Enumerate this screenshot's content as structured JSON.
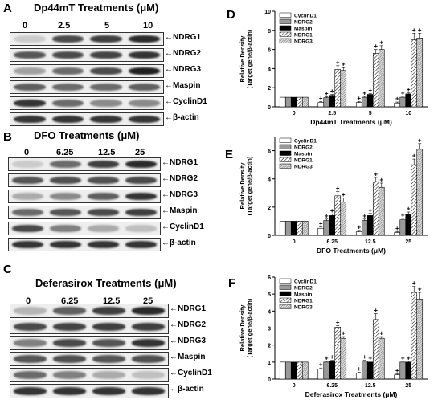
{
  "panels": {
    "A": {
      "letter": "A",
      "title": "Dp44mT Treatments (μM)",
      "concentrations": [
        "0",
        "2.5",
        "5",
        "10"
      ],
      "proteins": [
        "←NDRG1",
        "←NDRG2",
        "←NDRG3",
        "←Maspin",
        "←CyclinD1",
        "←β-actin"
      ],
      "band_intensity": [
        [
          0.15,
          0.75,
          0.8,
          0.9
        ],
        [
          0.7,
          0.75,
          0.78,
          0.85
        ],
        [
          0.35,
          0.6,
          0.75,
          0.95
        ],
        [
          0.65,
          0.6,
          0.6,
          0.65
        ],
        [
          0.85,
          0.6,
          0.45,
          0.45
        ],
        [
          0.85,
          0.85,
          0.85,
          0.85
        ]
      ]
    },
    "B": {
      "letter": "B",
      "title": "DFO Treatments (μM)",
      "concentrations": [
        "0",
        "6.25",
        "12.5",
        "25"
      ],
      "proteins": [
        "←NDRG1",
        "←NDRG2",
        "←NDRG3",
        "←Maspin",
        "←CyclinD1",
        "←β-actin"
      ],
      "band_intensity": [
        [
          0.15,
          0.6,
          0.8,
          0.9
        ],
        [
          0.7,
          0.72,
          0.72,
          0.75
        ],
        [
          0.3,
          0.45,
          0.65,
          0.85
        ],
        [
          0.6,
          0.7,
          0.75,
          0.8
        ],
        [
          0.75,
          0.5,
          0.3,
          0.2
        ],
        [
          0.85,
          0.85,
          0.85,
          0.85
        ]
      ]
    },
    "C": {
      "letter": "C",
      "title": "Deferasirox Treatments (μM)",
      "concentrations": [
        "0",
        "6.25",
        "12.5",
        "25"
      ],
      "proteins": [
        "←NDRG1",
        "←NDRG2",
        "←NDRG3",
        "←Maspin",
        "←CyclinD1",
        "←β-actin"
      ],
      "band_intensity": [
        [
          0.25,
          0.65,
          0.8,
          0.9
        ],
        [
          0.75,
          0.78,
          0.8,
          0.8
        ],
        [
          0.5,
          0.75,
          0.7,
          0.85
        ],
        [
          0.7,
          0.72,
          0.7,
          0.72
        ],
        [
          0.6,
          0.5,
          0.3,
          0.2
        ],
        [
          0.85,
          0.85,
          0.85,
          0.85
        ]
      ]
    },
    "D": {
      "letter": "D"
    },
    "E": {
      "letter": "E"
    },
    "F": {
      "letter": "F"
    }
  },
  "chart_data": [
    {
      "type": "bar",
      "panel": "D",
      "xlabel": "Dp44mT Treatments (μM)",
      "ylabel": "Relative Density\n(Target gene/β-actin)",
      "ylim": [
        0,
        10
      ],
      "yticks": [
        0,
        2,
        4,
        6,
        8,
        10
      ],
      "categories": [
        "0",
        "2.5",
        "5",
        "10"
      ],
      "legend": {
        "placement": "top-left"
      },
      "series": [
        {
          "name": "CyclinD1",
          "values": [
            1.0,
            0.45,
            0.45,
            0.4
          ],
          "errors": [
            0,
            0.1,
            0.1,
            0.1
          ]
        },
        {
          "name": "NDRG2",
          "values": [
            1.0,
            0.95,
            1.0,
            1.0
          ],
          "errors": [
            0,
            0.1,
            0.1,
            0.1
          ]
        },
        {
          "name": "Maspin",
          "values": [
            1.0,
            1.2,
            1.3,
            1.35
          ],
          "errors": [
            0,
            0.1,
            0.1,
            0.1
          ]
        },
        {
          "name": "NDRG1",
          "values": [
            1.0,
            3.9,
            5.6,
            7.0
          ],
          "errors": [
            0,
            0.4,
            0.4,
            0.7
          ]
        },
        {
          "name": "NDRG3",
          "values": [
            1.0,
            3.8,
            6.0,
            7.2
          ],
          "errors": [
            0,
            0.3,
            0.4,
            0.5
          ]
        }
      ],
      "markers": "+"
    },
    {
      "type": "bar",
      "panel": "E",
      "xlabel": "DFO Treatments (μM)",
      "ylabel": "Relative Density\n(Target gene/β-actin)",
      "ylim": [
        0,
        7
      ],
      "yticks": [
        0,
        2,
        4,
        6
      ],
      "categories": [
        "0",
        "6.25",
        "12.5",
        "25"
      ],
      "legend": {
        "placement": "top-left"
      },
      "series": [
        {
          "name": "CyclinD1",
          "values": [
            1.0,
            0.5,
            0.25,
            0.2
          ],
          "errors": [
            0,
            0.1,
            0.1,
            0.05
          ]
        },
        {
          "name": "NDRG2",
          "values": [
            1.0,
            1.05,
            1.05,
            1.1
          ],
          "errors": [
            0,
            0.1,
            0.1,
            0.1
          ]
        },
        {
          "name": "Maspin",
          "values": [
            1.0,
            1.4,
            1.4,
            1.5
          ],
          "errors": [
            0,
            0.1,
            0.15,
            0.15
          ]
        },
        {
          "name": "NDRG1",
          "values": [
            1.0,
            2.8,
            3.8,
            5.0
          ],
          "errors": [
            0,
            0.3,
            0.3,
            0.4
          ]
        },
        {
          "name": "NDRG3",
          "values": [
            1.0,
            2.35,
            3.4,
            6.1
          ],
          "errors": [
            0,
            0.3,
            0.3,
            0.4
          ]
        }
      ],
      "markers": "+"
    },
    {
      "type": "bar",
      "panel": "F",
      "xlabel": "Deferasirox Treatments (μM)",
      "ylabel": "Relative Density\n(Target gene/β-actin)",
      "ylim": [
        0,
        6
      ],
      "yticks": [
        0,
        1,
        2,
        3,
        4,
        5,
        6
      ],
      "categories": [
        "0",
        "6.25",
        "12.5",
        "25"
      ],
      "legend": {
        "placement": "top-left"
      },
      "series": [
        {
          "name": "CyclinD1",
          "values": [
            1.0,
            0.6,
            0.35,
            0.25
          ],
          "errors": [
            0,
            0.05,
            0.05,
            0.05
          ]
        },
        {
          "name": "NDRG2",
          "values": [
            1.0,
            1.0,
            1.05,
            1.0
          ],
          "errors": [
            0,
            0.05,
            0.05,
            0.05
          ]
        },
        {
          "name": "Maspin",
          "values": [
            1.0,
            1.05,
            1.0,
            1.0
          ],
          "errors": [
            0,
            0.05,
            0.05,
            0.05
          ]
        },
        {
          "name": "NDRG1",
          "values": [
            1.0,
            3.05,
            3.5,
            5.1
          ],
          "errors": [
            0,
            0.1,
            0.35,
            0.35
          ]
        },
        {
          "name": "NDRG3",
          "values": [
            1.0,
            2.4,
            2.4,
            4.7
          ],
          "errors": [
            0,
            0.1,
            0.1,
            0.4
          ]
        }
      ],
      "markers": "+"
    }
  ]
}
